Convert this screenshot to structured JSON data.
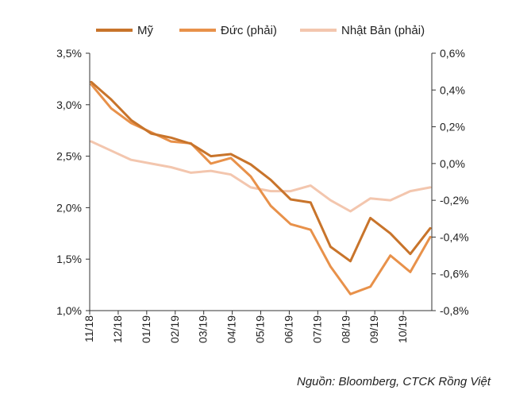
{
  "chart_data": {
    "type": "line",
    "title": "",
    "x_labels": [
      "11/18",
      "12/18",
      "01/19",
      "02/19",
      "03/19",
      "04/19",
      "05/19",
      "06/19",
      "07/19",
      "08/19",
      "09/19",
      "10/19"
    ],
    "y_left": {
      "min": 1.0,
      "max": 3.5,
      "ticks": [
        "1,0%",
        "1,5%",
        "2,0%",
        "2,5%",
        "3,0%",
        "3,5%"
      ]
    },
    "y_right": {
      "min": -0.8,
      "max": 0.6,
      "ticks": [
        "-0,8%",
        "-0,6%",
        "-0,4%",
        "-0,2%",
        "0,0%",
        "0,2%",
        "0,4%",
        "0,6%"
      ]
    },
    "series": [
      {
        "name": "Mỹ",
        "axis": "left",
        "color": "#C8742B",
        "values": [
          3.22,
          3.05,
          2.85,
          2.72,
          2.68,
          2.62,
          2.5,
          2.52,
          2.42,
          2.27,
          2.08,
          2.05,
          1.62,
          1.48,
          1.9,
          1.75,
          1.55,
          1.8
        ]
      },
      {
        "name": "Đức (phải)",
        "axis": "right",
        "color": "#E8914A",
        "values": [
          0.43,
          0.3,
          0.22,
          0.17,
          0.12,
          0.11,
          0.0,
          0.03,
          -0.07,
          -0.23,
          -0.33,
          -0.36,
          -0.56,
          -0.71,
          -0.67,
          -0.5,
          -0.59,
          -0.4
        ]
      },
      {
        "name": "Nhật Bản (phải)",
        "axis": "right",
        "color": "#F3C6AE",
        "values": [
          0.12,
          0.07,
          0.02,
          0.0,
          -0.02,
          -0.05,
          -0.04,
          -0.06,
          -0.13,
          -0.15,
          -0.15,
          -0.12,
          -0.2,
          -0.26,
          -0.19,
          -0.2,
          -0.15,
          -0.13
        ]
      }
    ],
    "source": "Nguồn: Bloomberg, CTCK Rồng Việt"
  }
}
